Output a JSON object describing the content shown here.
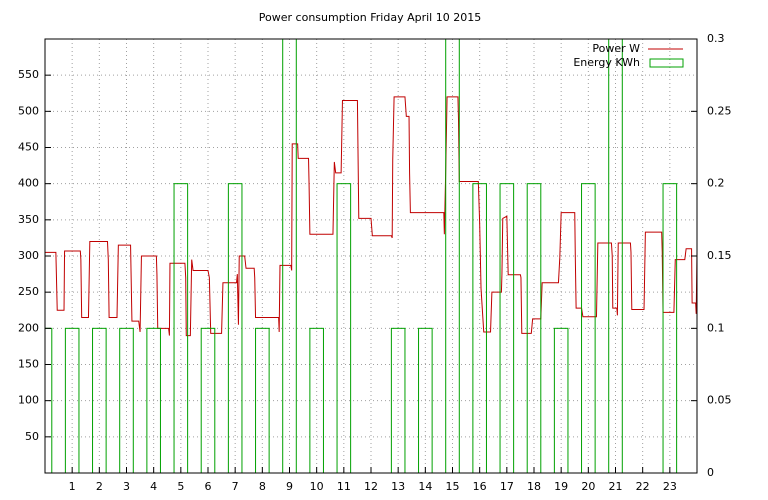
{
  "chart_data": {
    "type": "line",
    "title": "Power consumption Friday April 10 2015",
    "xlim": [
      0,
      24
    ],
    "xticks": [
      1,
      2,
      3,
      4,
      5,
      6,
      7,
      8,
      9,
      10,
      11,
      12,
      13,
      14,
      15,
      16,
      17,
      18,
      19,
      20,
      21,
      22,
      23
    ],
    "ylim": [
      0,
      600
    ],
    "yticks": [
      50,
      100,
      150,
      200,
      250,
      300,
      350,
      400,
      450,
      500,
      550
    ],
    "y2lim": [
      0,
      0.3
    ],
    "y2ticks": [
      0,
      0.05,
      0.1,
      0.15,
      0.2,
      0.25,
      0.3
    ],
    "grid": true,
    "legend": "top-right",
    "series": [
      {
        "name": "Power W",
        "type": "line",
        "color": "#c00000",
        "x": [
          0,
          0.4,
          0.45,
          0.7,
          0.72,
          1.3,
          1.32,
          1.35,
          1.6,
          1.65,
          2.3,
          2.33,
          2.36,
          2.65,
          2.7,
          3.15,
          3.2,
          3.45,
          3.5,
          3.55,
          4.1,
          4.12,
          4.15,
          4.55,
          4.58,
          4.6,
          5.15,
          5.18,
          5.2,
          5.35,
          5.4,
          5.45,
          6.0,
          6.05,
          6.1,
          6.5,
          6.55,
          7.05,
          7.08,
          7.12,
          7.15,
          7.35,
          7.4,
          7.7,
          7.72,
          7.75,
          8.6,
          8.62,
          8.65,
          9.05,
          9.08,
          9.1,
          9.3,
          9.32,
          9.7,
          9.72,
          9.75,
          10.6,
          10.65,
          10.7,
          10.9,
          10.95,
          11.5,
          11.55,
          12.0,
          12.05,
          12.75,
          12.78,
          12.8,
          12.85,
          13.25,
          13.3,
          13.4,
          13.42,
          13.45,
          14.68,
          14.7,
          14.75,
          14.8,
          15.2,
          15.22,
          15.25,
          15.95,
          16.0,
          16.05,
          16.15,
          16.4,
          16.45,
          16.8,
          16.82,
          16.85,
          17.0,
          17.05,
          17.5,
          17.52,
          17.55,
          17.9,
          17.95,
          18.25,
          18.3,
          18.9,
          18.95,
          19.0,
          19.5,
          19.52,
          19.55,
          19.75,
          19.8,
          20.3,
          20.35,
          20.85,
          20.88,
          20.9,
          21.05,
          21.07,
          21.1,
          21.55,
          21.57,
          21.6,
          22.05,
          22.1,
          22.7,
          22.72,
          22.75,
          23.15,
          23.2,
          23.55,
          23.6,
          23.8,
          23.82,
          23.95,
          23.97,
          24
        ],
        "values": [
          305,
          305,
          225,
          225,
          307,
          307,
          295,
          215,
          215,
          320,
          320,
          295,
          215,
          215,
          315,
          315,
          210,
          210,
          195,
          300,
          300,
          275,
          200,
          200,
          190,
          290,
          290,
          270,
          190,
          190,
          295,
          280,
          280,
          270,
          193,
          193,
          263,
          263,
          275,
          205,
          300,
          300,
          283,
          283,
          270,
          215,
          215,
          195,
          287,
          287,
          280,
          455,
          455,
          435,
          435,
          400,
          330,
          330,
          430,
          415,
          415,
          515,
          515,
          352,
          352,
          328,
          328,
          325,
          433,
          520,
          520,
          493,
          493,
          415,
          360,
          360,
          330,
          418,
          520,
          520,
          490,
          403,
          403,
          345,
          255,
          195,
          195,
          250,
          250,
          275,
          352,
          355,
          274,
          274,
          270,
          193,
          193,
          213,
          213,
          263,
          263,
          298,
          360,
          360,
          300,
          228,
          228,
          216,
          216,
          318,
          318,
          300,
          228,
          228,
          218,
          318,
          318,
          305,
          226,
          226,
          333,
          333,
          305,
          222,
          222,
          295,
          295,
          310,
          310,
          235,
          235,
          220,
          305
        ]
      },
      {
        "name": "Energy KWh",
        "type": "bar",
        "axis": "y2",
        "color": "#00a000",
        "x": [
          0,
          1,
          2,
          3,
          4,
          5,
          6,
          7,
          8,
          9,
          10,
          11,
          12,
          13,
          14,
          15,
          16,
          17,
          18,
          19,
          20,
          21,
          22,
          23
        ],
        "values": [
          0.1,
          0.1,
          0.1,
          0.1,
          0.1,
          0.2,
          0.1,
          0.2,
          0.1,
          0.3,
          0.1,
          0.2,
          0,
          0.1,
          0.1,
          0.3,
          0.2,
          0.2,
          0.2,
          0.1,
          0.2,
          0.3,
          0,
          0.2
        ]
      }
    ]
  }
}
